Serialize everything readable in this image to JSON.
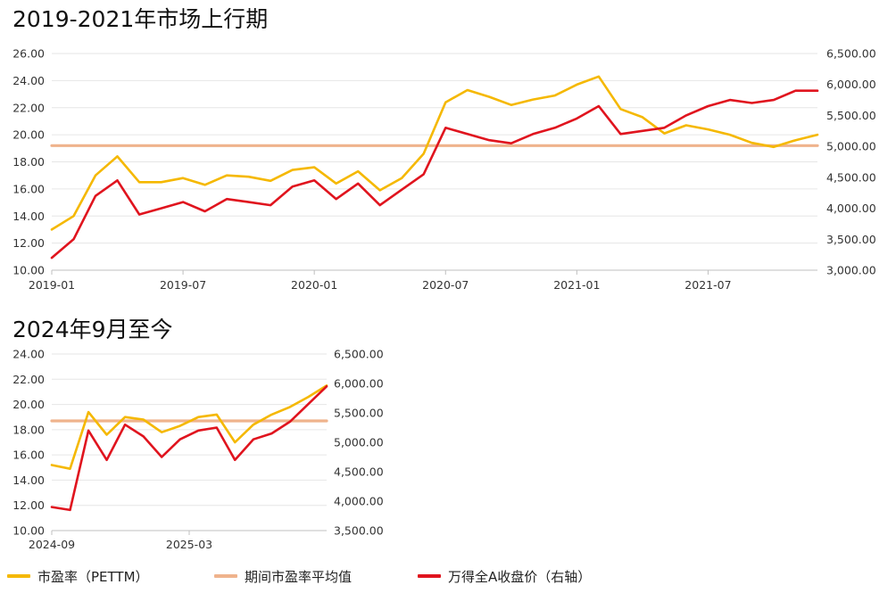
{
  "colors": {
    "pe": "#F5B800",
    "avg": "#EFB38C",
    "price": "#E0141E",
    "grid": "#E6E6E6",
    "text": "#333333"
  },
  "legend": [
    {
      "label": "市盈率（PETTM）",
      "color": "#F5B800"
    },
    {
      "label": "期间市盈率平均值",
      "color": "#EFB38C"
    },
    {
      "label": "万得全A收盘价（右轴）",
      "color": "#E0141E"
    }
  ],
  "chart_data": [
    {
      "type": "line",
      "title": "2019-2021年市场上行期",
      "y_ticks": [
        "10.00",
        "12.00",
        "14.00",
        "16.00",
        "18.00",
        "20.00",
        "22.00",
        "24.00",
        "26.00"
      ],
      "y2_ticks": [
        "3,000.00",
        "3,500.00",
        "4,000.00",
        "4,500.00",
        "5,000.00",
        "5,500.00",
        "6,000.00",
        "6,500.00"
      ],
      "x_ticks": [
        "2019-01",
        "2019-07",
        "2020-01",
        "2020-07",
        "2021-01",
        "2021-07"
      ],
      "ylim": [
        10,
        26
      ],
      "y2lim": [
        3000,
        6500
      ],
      "x_range": [
        "2019-01",
        "2021-12"
      ],
      "series": [
        {
          "name": "市盈率（PETTM）",
          "axis": "left",
          "x": [
            "2019-01",
            "2019-02",
            "2019-03",
            "2019-04",
            "2019-05",
            "2019-06",
            "2019-07",
            "2019-08",
            "2019-09",
            "2019-10",
            "2019-11",
            "2019-12",
            "2020-01",
            "2020-02",
            "2020-03",
            "2020-04",
            "2020-05",
            "2020-06",
            "2020-07",
            "2020-08",
            "2020-09",
            "2020-10",
            "2020-11",
            "2020-12",
            "2021-01",
            "2021-02",
            "2021-03",
            "2021-04",
            "2021-05",
            "2021-06",
            "2021-07",
            "2021-08",
            "2021-09",
            "2021-10",
            "2021-11",
            "2021-12"
          ],
          "values": [
            13.0,
            14.0,
            17.0,
            18.4,
            16.5,
            16.5,
            16.8,
            16.3,
            17.0,
            16.9,
            16.6,
            17.4,
            17.6,
            16.4,
            17.3,
            15.9,
            16.8,
            18.6,
            22.4,
            23.3,
            22.8,
            22.2,
            22.6,
            22.9,
            23.7,
            24.3,
            21.9,
            21.3,
            20.1,
            20.7,
            20.4,
            20.0,
            19.4,
            19.1,
            19.6,
            20.0
          ]
        },
        {
          "name": "期间市盈率平均值",
          "axis": "left",
          "x": [
            "2019-01",
            "2021-12"
          ],
          "values": [
            19.2,
            19.2
          ]
        },
        {
          "name": "万得全A收盘价（右轴）",
          "axis": "right",
          "x": [
            "2019-01",
            "2019-02",
            "2019-03",
            "2019-04",
            "2019-05",
            "2019-06",
            "2019-07",
            "2019-08",
            "2019-09",
            "2019-10",
            "2019-11",
            "2019-12",
            "2020-01",
            "2020-02",
            "2020-03",
            "2020-04",
            "2020-05",
            "2020-06",
            "2020-07",
            "2020-08",
            "2020-09",
            "2020-10",
            "2020-11",
            "2020-12",
            "2021-01",
            "2021-02",
            "2021-03",
            "2021-04",
            "2021-05",
            "2021-06",
            "2021-07",
            "2021-08",
            "2021-09",
            "2021-10",
            "2021-11",
            "2021-12"
          ],
          "values": [
            3200,
            3500,
            4200,
            4450,
            3900,
            4000,
            4100,
            3950,
            4150,
            4100,
            4050,
            4350,
            4450,
            4150,
            4400,
            4050,
            4300,
            4550,
            5300,
            5200,
            5100,
            5050,
            5200,
            5300,
            5450,
            5650,
            5200,
            5250,
            5300,
            5500,
            5650,
            5750,
            5700,
            5750,
            5900,
            5900
          ]
        }
      ]
    },
    {
      "type": "line",
      "title": "2024年9月至今",
      "y_ticks": [
        "10.00",
        "12.00",
        "14.00",
        "16.00",
        "18.00",
        "20.00",
        "22.00",
        "24.00"
      ],
      "y2_ticks": [
        "3,500.00",
        "4,000.00",
        "4,500.00",
        "5,000.00",
        "5,500.00",
        "6,000.00",
        "6,500.00"
      ],
      "x_ticks": [
        "2024-09",
        "2025-03"
      ],
      "ylim": [
        10,
        24
      ],
      "y2lim": [
        3500,
        6500
      ],
      "x_range": [
        "2024-09",
        "2025-09"
      ],
      "series": [
        {
          "name": "市盈率（PETTM）",
          "axis": "left",
          "x": [
            "2024-09",
            "2024-09",
            "2024-10",
            "2024-10",
            "2024-11",
            "2024-12",
            "2025-01",
            "2025-02",
            "2025-03",
            "2025-04",
            "2025-04",
            "2025-05",
            "2025-06",
            "2025-07",
            "2025-08",
            "2025-09"
          ],
          "values": [
            15.2,
            14.9,
            19.4,
            17.6,
            19.0,
            18.8,
            17.8,
            18.3,
            19.0,
            19.2,
            17.0,
            18.4,
            19.2,
            19.8,
            20.6,
            21.5
          ]
        },
        {
          "name": "期间市盈率平均值",
          "axis": "left",
          "x": [
            "2024-09",
            "2025-09"
          ],
          "values": [
            18.7,
            18.7
          ]
        },
        {
          "name": "万得全A收盘价（右轴）",
          "axis": "right",
          "x": [
            "2024-09",
            "2024-09",
            "2024-10",
            "2024-10",
            "2024-11",
            "2024-12",
            "2025-01",
            "2025-02",
            "2025-03",
            "2025-04",
            "2025-04",
            "2025-05",
            "2025-06",
            "2025-07",
            "2025-08",
            "2025-09"
          ],
          "values": [
            3900,
            3850,
            5200,
            4700,
            5300,
            5100,
            4750,
            5050,
            5200,
            5250,
            4700,
            5050,
            5150,
            5350,
            5650,
            5950
          ]
        }
      ]
    }
  ]
}
